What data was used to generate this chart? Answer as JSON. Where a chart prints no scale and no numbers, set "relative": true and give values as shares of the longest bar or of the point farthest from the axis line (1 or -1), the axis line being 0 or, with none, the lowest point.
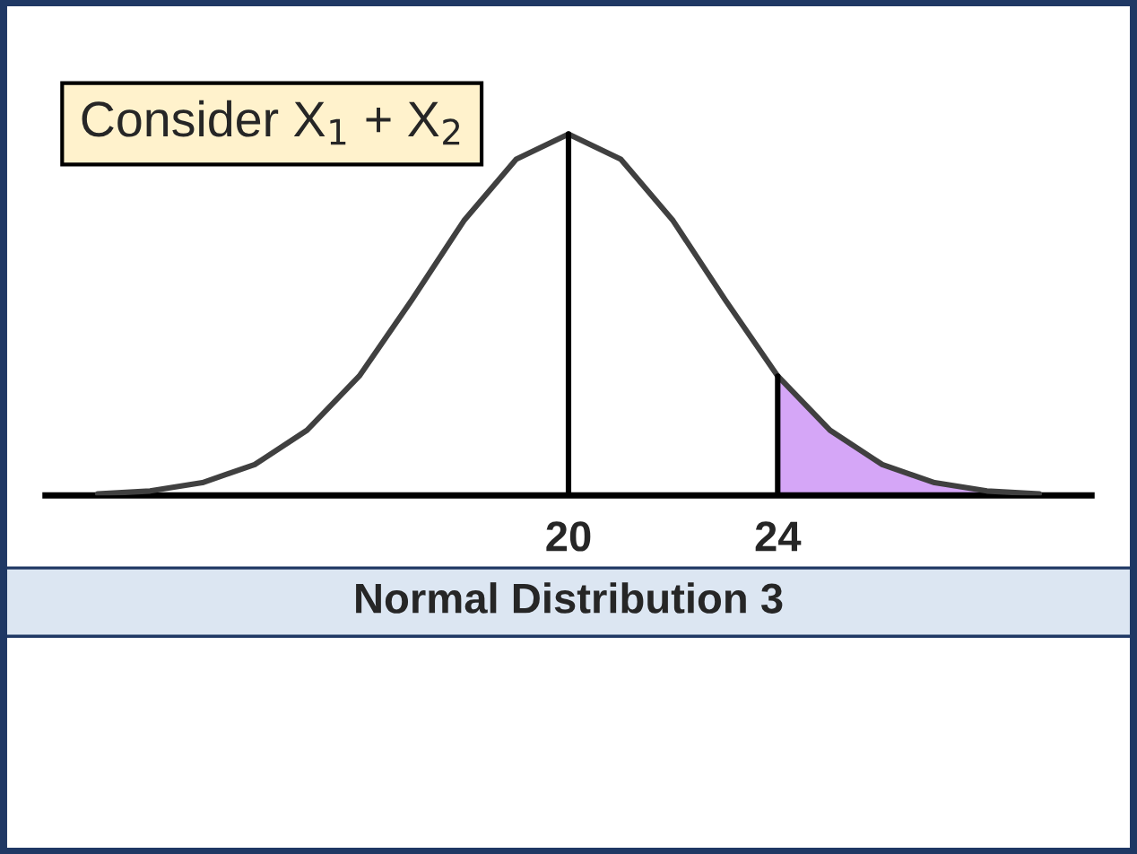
{
  "chart_data": {
    "type": "line",
    "relative": true,
    "title": "Normal Distribution 3",
    "annotations": [
      "Consider X$_{1}$ + X$_{2}$"
    ],
    "x": [
      11,
      12,
      13,
      14,
      15,
      16,
      17,
      18,
      19,
      20,
      21,
      22,
      23,
      24,
      25,
      26,
      27,
      28,
      29
    ],
    "series": [
      {
        "color": "#404040",
        "values": [
          0.004,
          0.012,
          0.035,
          0.085,
          0.18,
          0.33,
          0.54,
          0.76,
          0.93,
          1,
          0.93,
          0.76,
          0.54,
          0.33,
          0.18,
          0.085,
          0.035,
          0.012,
          0.004
        ]
      },
      {
        "type": "area",
        "color": "#d5a6f7",
        "x": [
          24,
          25,
          26,
          27,
          28,
          29
        ],
        "values": [
          0.33,
          0.18,
          0.085,
          0.035,
          0.012,
          0.004
        ]
      }
    ],
    "xlim": [
      10,
      30
    ],
    "xticks": [
      20,
      24
    ],
    "tick_labels": "x",
    "ref_lines": [
      {
        "axis": "x",
        "value": 20,
        "color": "#000000"
      },
      {
        "axis": "x",
        "value": 24,
        "color": "#000000"
      }
    ],
    "grid": false,
    "legend": false
  }
}
